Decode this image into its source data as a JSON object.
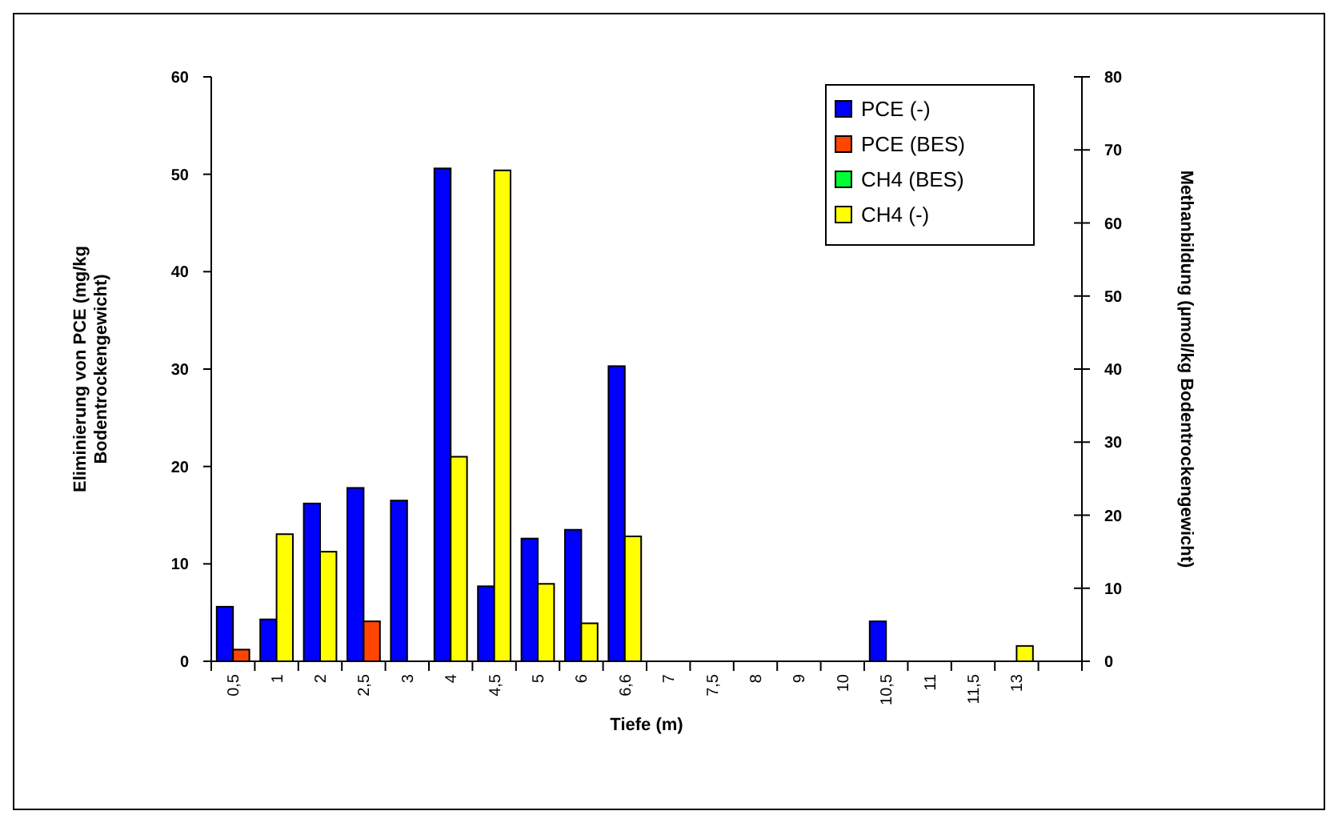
{
  "chart_data": {
    "type": "bar",
    "xlabel": "Tiefe (m)",
    "ylabel": "Eliminierung von PCE (mg/kg\nBodentrockengewicht)",
    "y2label": "Methanbildung (µmol/kg Bodentrockengewicht)",
    "categories": [
      "0,5",
      "1",
      "2",
      "2,5",
      "3",
      "4",
      "4,5",
      "5",
      "6",
      "6,6",
      "7",
      "7,5",
      "8",
      "9",
      "10",
      "10,5",
      "11",
      "11,5",
      "13",
      null
    ],
    "series": [
      {
        "name": "PCE (-)",
        "color": "#0000ff",
        "values": [
          5.6,
          4.3,
          16.2,
          17.8,
          16.5,
          50.6,
          7.7,
          12.6,
          13.5,
          30.3,
          null,
          null,
          null,
          null,
          null,
          4.1,
          null,
          null,
          null,
          null
        ]
      },
      {
        "name": "PCE (BES)",
        "color": "#ff4500",
        "values": [
          1.2,
          null,
          null,
          4.1,
          null,
          null,
          null,
          null,
          null,
          null,
          null,
          null,
          null,
          null,
          null,
          null,
          null,
          null,
          null,
          null
        ]
      },
      {
        "name": "CH4 (BES)",
        "color": "#00ff33",
        "axis": "y2",
        "values": [
          null,
          null,
          null,
          null,
          null,
          null,
          null,
          null,
          null,
          null,
          null,
          null,
          null,
          null,
          null,
          null,
          null,
          null,
          null,
          null
        ]
      },
      {
        "name": "CH4 (-)",
        "color": "#ffff00",
        "axis": "y2",
        "values": [
          null,
          17.4,
          15.0,
          null,
          null,
          28.0,
          67.2,
          10.6,
          5.2,
          17.1,
          null,
          null,
          null,
          null,
          null,
          null,
          null,
          null,
          2.1,
          null
        ]
      }
    ],
    "ylim": [
      0,
      60
    ],
    "yticks": [
      0,
      10,
      20,
      30,
      40,
      50,
      60
    ],
    "y2lim": [
      0,
      80
    ],
    "y2ticks": [
      0,
      10,
      20,
      30,
      40,
      50,
      60,
      70,
      80
    ],
    "legend": "top right",
    "grid": false
  }
}
